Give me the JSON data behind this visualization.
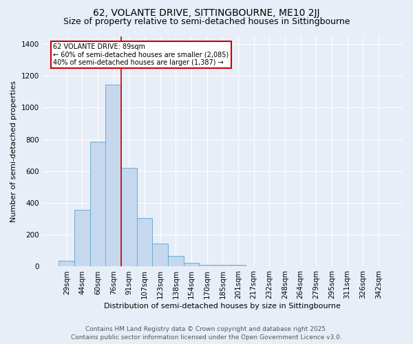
{
  "title": "62, VOLANTE DRIVE, SITTINGBOURNE, ME10 2JJ",
  "subtitle": "Size of property relative to semi-detached houses in Sittingbourne",
  "xlabel": "Distribution of semi-detached houses by size in Sittingbourne",
  "ylabel": "Number of semi-detached properties",
  "categories": [
    "29sqm",
    "44sqm",
    "60sqm",
    "76sqm",
    "91sqm",
    "107sqm",
    "123sqm",
    "138sqm",
    "154sqm",
    "170sqm",
    "185sqm",
    "201sqm",
    "217sqm",
    "232sqm",
    "248sqm",
    "264sqm",
    "279sqm",
    "295sqm",
    "311sqm",
    "326sqm",
    "342sqm"
  ],
  "values": [
    35,
    355,
    785,
    1145,
    620,
    305,
    145,
    65,
    25,
    10,
    12,
    10,
    0,
    0,
    0,
    0,
    0,
    0,
    0,
    0,
    0
  ],
  "bar_color": "#c5d8ee",
  "bar_edge_color": "#6aabd2",
  "vline_color": "#cc0000",
  "annotation_title": "62 VOLANTE DRIVE: 89sqm",
  "annotation_line1": "← 60% of semi-detached houses are smaller (2,085)",
  "annotation_line2": "40% of semi-detached houses are larger (1,387) →",
  "annotation_box_color": "#cc0000",
  "ylim": [
    0,
    1450
  ],
  "yticks": [
    0,
    200,
    400,
    600,
    800,
    1000,
    1200,
    1400
  ],
  "footer_line1": "Contains HM Land Registry data © Crown copyright and database right 2025.",
  "footer_line2": "Contains public sector information licensed under the Open Government Licence v3.0.",
  "background_color": "#e8eef7",
  "plot_bg_color": "#e8eef7",
  "title_fontsize": 10,
  "subtitle_fontsize": 9,
  "label_fontsize": 8,
  "tick_fontsize": 7.5,
  "footer_fontsize": 6.5,
  "vline_pos": 3.5
}
